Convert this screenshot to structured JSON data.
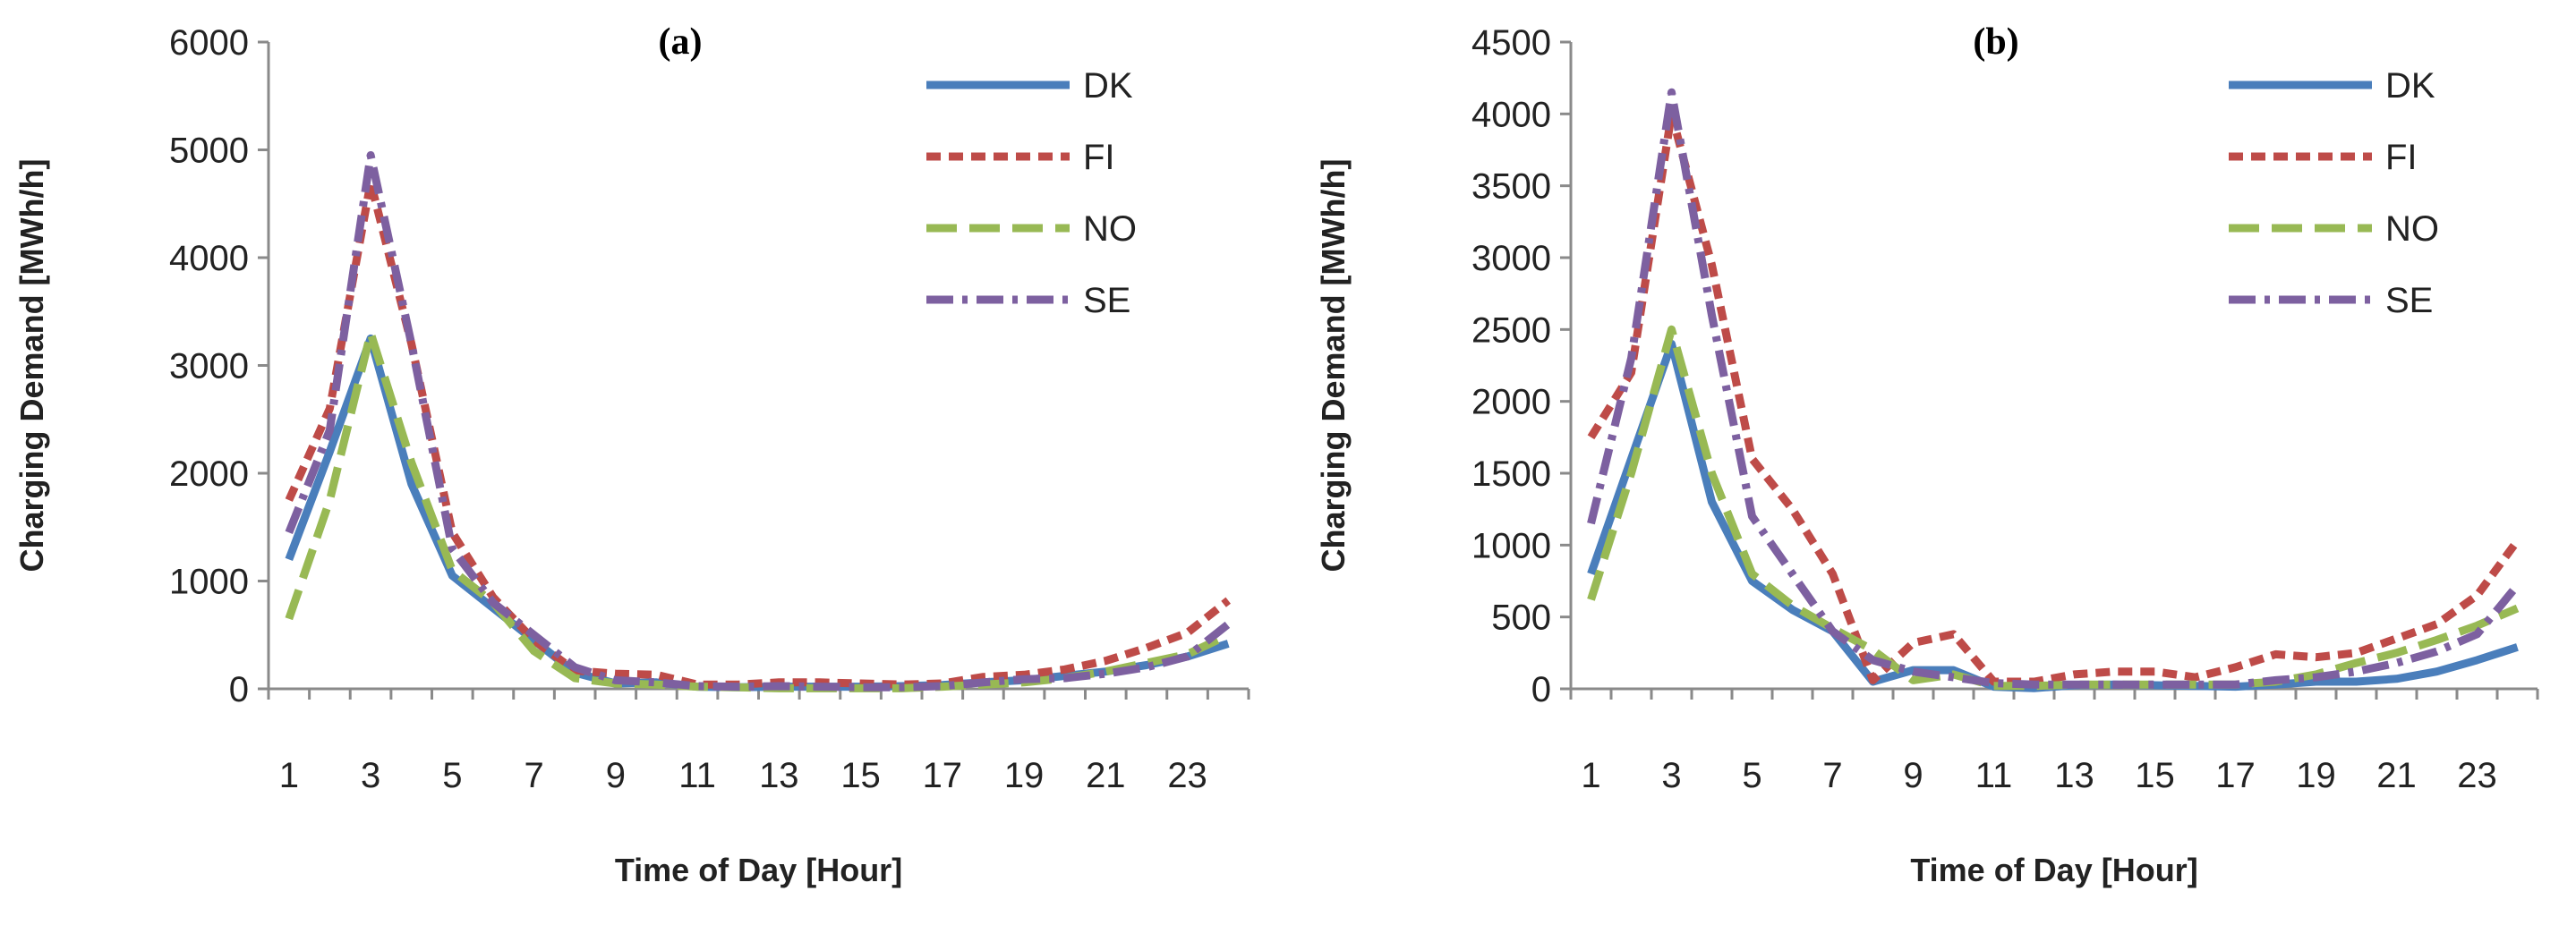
{
  "colors": {
    "DK": "#4a7ebb",
    "FI": "#be4b48",
    "NO": "#98b954",
    "SE": "#7d60a0"
  },
  "chart_data": [
    {
      "type": "line",
      "title": "(a)",
      "xlabel": "Time of Day [Hour]",
      "ylabel": "Charging Demand [MWh/h]",
      "ylim": [
        0,
        6000
      ],
      "yticks": [
        0,
        1000,
        2000,
        3000,
        4000,
        5000,
        6000
      ],
      "xlim": [
        1,
        24
      ],
      "xticks": [
        1,
        3,
        5,
        7,
        9,
        11,
        13,
        15,
        17,
        19,
        21,
        23
      ],
      "x": [
        1,
        2,
        3,
        4,
        5,
        6,
        7,
        8,
        9,
        10,
        11,
        12,
        13,
        14,
        15,
        16,
        17,
        18,
        19,
        20,
        21,
        22,
        23,
        24
      ],
      "legend": "top-right",
      "series": [
        {
          "name": "DK",
          "style": "solid",
          "values": [
            1200,
            2200,
            3250,
            1900,
            1050,
            750,
            450,
            150,
            50,
            60,
            20,
            15,
            20,
            20,
            20,
            25,
            35,
            60,
            80,
            120,
            160,
            220,
            300,
            420
          ]
        },
        {
          "name": "FI",
          "style": "dashed",
          "values": [
            1750,
            2600,
            4700,
            3200,
            1450,
            850,
            450,
            170,
            140,
            130,
            40,
            40,
            60,
            60,
            50,
            40,
            50,
            110,
            130,
            180,
            260,
            380,
            520,
            820
          ]
        },
        {
          "name": "NO",
          "style": "longdash",
          "values": [
            650,
            1750,
            3300,
            2100,
            1100,
            800,
            350,
            100,
            50,
            40,
            20,
            15,
            5,
            5,
            5,
            5,
            20,
            40,
            60,
            100,
            160,
            240,
            320,
            500
          ]
        },
        {
          "name": "SE",
          "style": "dashdot",
          "values": [
            1450,
            2400,
            4950,
            3200,
            1300,
            800,
            500,
            200,
            80,
            60,
            25,
            20,
            25,
            20,
            15,
            15,
            25,
            60,
            90,
            100,
            140,
            200,
            300,
            600
          ]
        }
      ]
    },
    {
      "type": "line",
      "title": "(b)",
      "xlabel": "Time of Day [Hour]",
      "ylabel": "Charging Demand [MWh/h]",
      "ylim": [
        0,
        4500
      ],
      "yticks": [
        0,
        500,
        1000,
        1500,
        2000,
        2500,
        3000,
        3500,
        4000,
        4500
      ],
      "xlim": [
        1,
        24
      ],
      "xticks": [
        1,
        3,
        5,
        7,
        9,
        11,
        13,
        15,
        17,
        19,
        21,
        23
      ],
      "x": [
        1,
        2,
        3,
        4,
        5,
        6,
        7,
        8,
        9,
        10,
        11,
        12,
        13,
        14,
        15,
        16,
        17,
        18,
        19,
        20,
        21,
        22,
        23,
        24
      ],
      "legend": "top-right",
      "series": [
        {
          "name": "DK",
          "style": "solid",
          "values": [
            800,
            1600,
            2400,
            1300,
            750,
            550,
            400,
            50,
            130,
            130,
            15,
            5,
            25,
            30,
            25,
            20,
            15,
            30,
            50,
            50,
            70,
            120,
            200,
            290
          ]
        },
        {
          "name": "FI",
          "style": "dashed",
          "values": [
            1750,
            2200,
            4000,
            2950,
            1600,
            1250,
            800,
            60,
            320,
            380,
            50,
            50,
            100,
            120,
            120,
            80,
            150,
            240,
            220,
            250,
            350,
            450,
            650,
            1030
          ]
        },
        {
          "name": "NO",
          "style": "longdash",
          "values": [
            620,
            1500,
            2500,
            1500,
            800,
            580,
            420,
            270,
            60,
            100,
            20,
            20,
            30,
            30,
            30,
            30,
            30,
            50,
            100,
            180,
            250,
            340,
            440,
            560
          ]
        },
        {
          "name": "SE",
          "style": "dashdot",
          "values": [
            1150,
            2300,
            4150,
            2600,
            1200,
            800,
            400,
            200,
            120,
            80,
            40,
            30,
            30,
            30,
            30,
            30,
            30,
            60,
            80,
            120,
            180,
            260,
            380,
            720
          ]
        }
      ]
    }
  ]
}
